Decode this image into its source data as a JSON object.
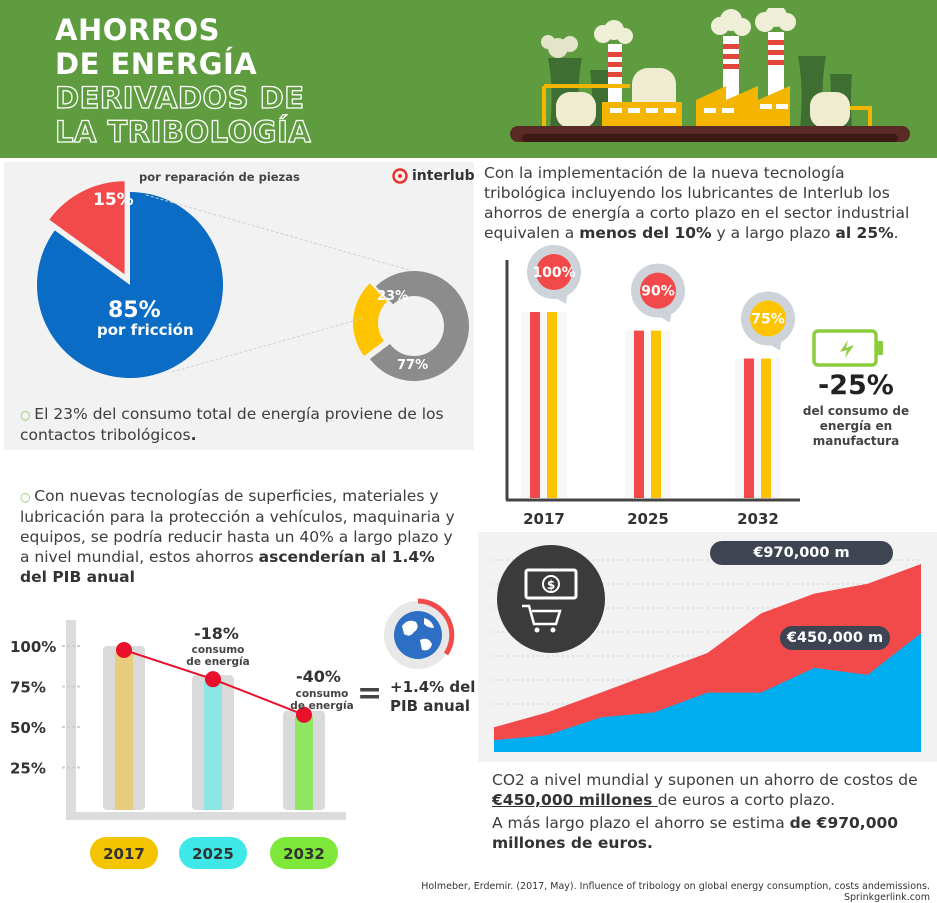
{
  "header": {
    "title_lines": [
      "AHORROS",
      "DE ENERGÍA"
    ],
    "subtitle_lines": [
      "DERIVADOS DE",
      "LA TRIBOLOGÍA"
    ]
  },
  "brand": {
    "name": "interlub",
    "color": "#e8302a"
  },
  "colors": {
    "header_green": "#5e9c3f",
    "blue": "#0a6cc4",
    "red": "#f24a4a",
    "yellow": "#ffc400",
    "grey": "#8c8c8c",
    "cyan": "#00aeef",
    "dark": "#3e4452"
  },
  "pie_section": {
    "pie_top_label": "por reparación de piezas",
    "slice_small_label": "15%",
    "slice_big_label": "85%",
    "slice_big_caption": "por fricción",
    "donut_small_label": "23%",
    "donut_big_label": "77%",
    "bullet_text": "El 23% del consumo total de energía proviene de los contactos tribológicos",
    "bullet_end": "."
  },
  "top_right": {
    "intro": "Con la implementación de la nueva tecnología tribológica incluyendo los lubricantes de Interlub los ahorros de energía a corto plazo en el sector industrial equivalen a ",
    "bold1": "menos del 10%",
    "mid": " y a largo plazo ",
    "bold2": "al 25%",
    "end": ".",
    "battery_value": "-25%",
    "battery_caption_1": "del consumo de",
    "battery_caption_2": "energía en manufactura"
  },
  "left_bottom": {
    "bullet_text": "Con nuevas tecnologías de superficies, materiales y lubricación para la protección a vehículos, maquinaria y equipos, se podría reducir hasta un 40% a largo plazo y a nivel mundial, estos ahorros ",
    "bullet_bold": "ascenderían al 1.4% del PIB anual",
    "annot_18": "-18%",
    "annot_40": "-40%",
    "annot_caption_1": "consumo",
    "annot_caption_2": "de energía",
    "equals": "=",
    "pib_1": "+1.4% del",
    "pib_2": "PIB anual"
  },
  "right_bottom": {
    "para1_start": "CO2 a nivel mundial y suponen un ahorro de costos de ",
    "para1_bold": "€450,000 millones ",
    "para1_end": "de euros a corto plazo.",
    "para2_start": "A más largo plazo el ahorro se estima ",
    "para2_bold": "de €970,000 millones de euros."
  },
  "footer": {
    "citation": "Holmeber, Erdemir. (2017, May). Influence of tribology on global energy consumption, costs andemissions. Sprinkgerlink.com"
  },
  "chart_data": [
    {
      "type": "pie",
      "categories": [
        "por reparación de piezas",
        "por fricción"
      ],
      "values": [
        15,
        85
      ],
      "colors": [
        "#f24a4a",
        "#0a6cc4"
      ]
    },
    {
      "type": "pie",
      "categories": [
        "",
        ""
      ],
      "values": [
        23,
        77
      ],
      "colors": [
        "#ffc400",
        "#8c8c8c"
      ]
    },
    {
      "type": "bar",
      "categories": [
        "2017",
        "2025",
        "2032"
      ],
      "values": [
        100,
        90,
        75
      ],
      "labels": [
        "100%",
        "90%",
        "75%"
      ],
      "colors": [
        "#f24a4a",
        "#ffc400"
      ]
    },
    {
      "type": "bar",
      "categories": [
        "2017",
        "2025",
        "2032"
      ],
      "values": [
        100,
        82,
        60
      ],
      "ytick_labels": [
        "100%",
        "75%",
        "50%",
        "25%"
      ],
      "ytick_values": [
        100,
        75,
        50,
        25
      ],
      "category_colors": [
        "#f5c400",
        "#3fe8e8",
        "#7ee83a"
      ],
      "bar_fill_colors": [
        "#e9cc7e",
        "#8de6e6",
        "#8ee662"
      ]
    },
    {
      "type": "area",
      "x": [
        0,
        1,
        2,
        3,
        4,
        5,
        6,
        7,
        8
      ],
      "series": [
        {
          "name": "",
          "values": [
            25,
            40,
            60,
            80,
            100,
            140,
            160,
            170,
            190
          ],
          "color": "#f24a4a"
        },
        {
          "name": "",
          "values": [
            12,
            17,
            35,
            40,
            60,
            60,
            85,
            78,
            120
          ],
          "color": "#00aeef"
        }
      ],
      "labels": [
        "€970,000 m",
        "€450,000 m"
      ]
    }
  ]
}
